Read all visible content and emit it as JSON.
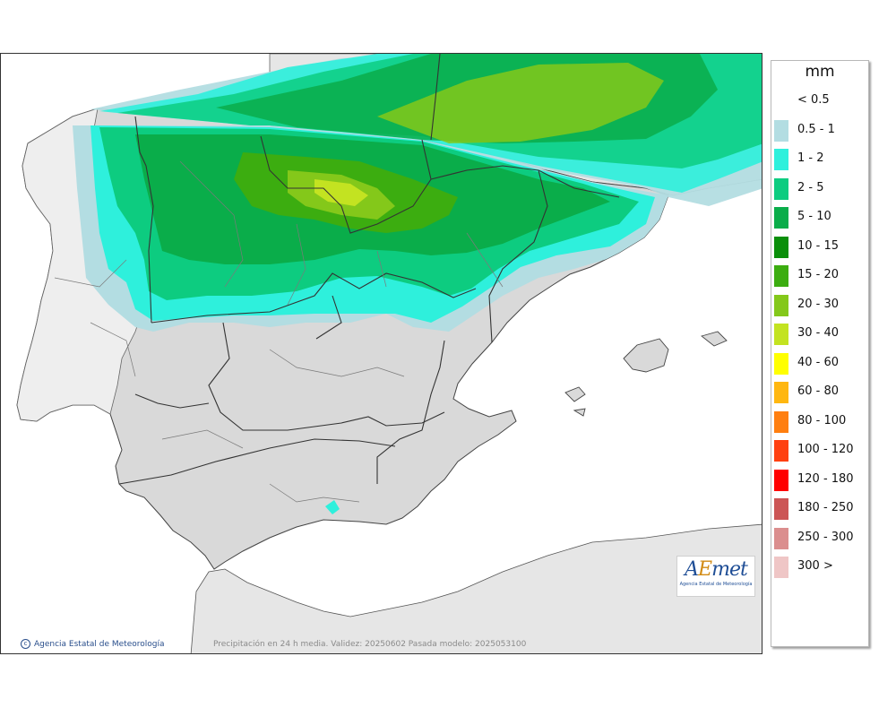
{
  "map": {
    "credit": "Agencia Estatal de Meteorología",
    "caption": "Precipitación en 24 h media. Validez: 20250602 Pasada modelo: 2025053100",
    "logo_word_a": "A",
    "logo_word_e": "E",
    "logo_word_rest": "met",
    "logo_sub": "Agencia Estatal de Meteorología"
  },
  "legend": {
    "unit": "mm",
    "classes": [
      {
        "label": "< 0.5",
        "color": "#ffffff"
      },
      {
        "label": "0.5 - 1",
        "color": "#b3dde2"
      },
      {
        "label": "1 - 2",
        "color": "#2ef0dc"
      },
      {
        "label": "2 - 5",
        "color": "#0dcc80"
      },
      {
        "label": "5 - 10",
        "color": "#0aad4a"
      },
      {
        "label": "10 - 15",
        "color": "#0a8f0a"
      },
      {
        "label": "15 - 20",
        "color": "#3cad10"
      },
      {
        "label": "20 - 30",
        "color": "#84c81a"
      },
      {
        "label": "30 - 40",
        "color": "#c3e321"
      },
      {
        "label": "40 - 60",
        "color": "#ffff00"
      },
      {
        "label": "60 - 80",
        "color": "#ffb710"
      },
      {
        "label": "80 - 100",
        "color": "#ff7f10"
      },
      {
        "label": "100 - 120",
        "color": "#ff4010"
      },
      {
        "label": "120 - 180",
        "color": "#ff0000"
      },
      {
        "label": "180 - 250",
        "color": "#cc5555"
      },
      {
        "label": "250 - 300",
        "color": "#db8e8e"
      },
      {
        "label": "300 >",
        "color": "#efc6c6"
      }
    ]
  }
}
